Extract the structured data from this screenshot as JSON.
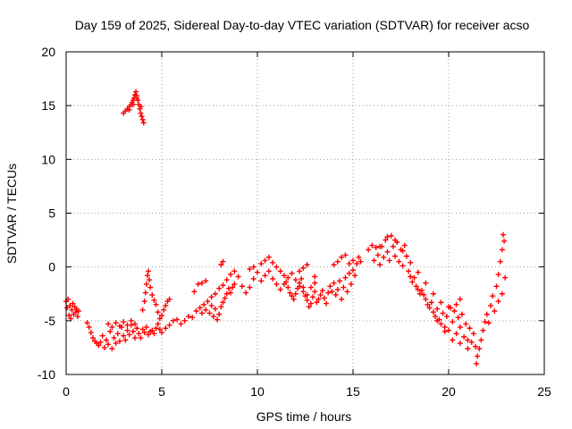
{
  "chart_data": {
    "type": "scatter",
    "title": "Day 159 of 2025, Sidereal Day-to-day VTEC variation (SDTVAR) for receiver acso",
    "xlabel": "GPS time / hours",
    "ylabel": "SDTVAR / TECUs",
    "xlim": [
      0,
      25
    ],
    "ylim": [
      -10,
      20
    ],
    "xticks": [
      0,
      5,
      10,
      15,
      20,
      25
    ],
    "yticks": [
      -10,
      -5,
      0,
      5,
      10,
      15,
      20
    ],
    "xtick_labels": [
      "0",
      "5",
      "10",
      "15",
      "20",
      "25"
    ],
    "ytick_labels": [
      "-10",
      "-5",
      "0",
      "5",
      "10",
      "15",
      "20"
    ],
    "grid": true,
    "marker": "+",
    "color": "#ff0000",
    "series": [
      {
        "name": "SDTVAR",
        "points": [
          [
            0.0,
            -3.2
          ],
          [
            0.05,
            -3.8
          ],
          [
            0.1,
            -3.0
          ],
          [
            0.15,
            -4.5
          ],
          [
            0.2,
            -3.6
          ],
          [
            0.25,
            -4.8
          ],
          [
            0.3,
            -4.0
          ],
          [
            0.35,
            -3.4
          ],
          [
            0.4,
            -4.4
          ],
          [
            0.45,
            -3.7
          ],
          [
            0.5,
            -4.2
          ],
          [
            0.55,
            -3.9
          ],
          [
            0.6,
            -4.6
          ],
          [
            0.65,
            -4.1
          ],
          [
            1.1,
            -5.2
          ],
          [
            1.2,
            -5.6
          ],
          [
            1.3,
            -6.1
          ],
          [
            1.4,
            -6.6
          ],
          [
            1.5,
            -6.9
          ],
          [
            1.6,
            -7.1
          ],
          [
            1.7,
            -7.3
          ],
          [
            1.8,
            -7.0
          ],
          [
            1.9,
            -6.4
          ],
          [
            2.0,
            -7.5
          ],
          [
            2.1,
            -6.8
          ],
          [
            2.2,
            -7.2
          ],
          [
            2.3,
            -6.0
          ],
          [
            2.4,
            -7.6
          ],
          [
            2.5,
            -6.6
          ],
          [
            2.6,
            -7.1
          ],
          [
            2.7,
            -6.2
          ],
          [
            2.8,
            -6.9
          ],
          [
            2.9,
            -5.6
          ],
          [
            3.0,
            -6.4
          ],
          [
            3.1,
            -6.8
          ],
          [
            3.2,
            -5.9
          ],
          [
            3.3,
            -6.3
          ],
          [
            3.4,
            -5.4
          ],
          [
            3.5,
            -6.0
          ],
          [
            3.6,
            -6.6
          ],
          [
            3.7,
            -5.7
          ],
          [
            3.8,
            -6.2
          ],
          [
            3.9,
            -6.6
          ],
          [
            4.0,
            -5.8
          ],
          [
            4.1,
            -6.1
          ],
          [
            4.2,
            -5.6
          ],
          [
            4.3,
            -6.3
          ],
          [
            4.4,
            -6.0
          ],
          [
            4.5,
            -5.9
          ],
          [
            4.6,
            -6.2
          ],
          [
            4.7,
            -5.7
          ],
          [
            4.8,
            -5.3
          ],
          [
            4.9,
            -5.8
          ],
          [
            2.2,
            -5.3
          ],
          [
            2.4,
            -5.6
          ],
          [
            2.6,
            -5.2
          ],
          [
            2.8,
            -5.5
          ],
          [
            3.0,
            -5.1
          ],
          [
            3.2,
            -5.4
          ],
          [
            3.4,
            -5.0
          ],
          [
            3.6,
            -5.3
          ],
          [
            4.0,
            -4.0
          ],
          [
            4.1,
            -3.2
          ],
          [
            4.15,
            -2.4
          ],
          [
            4.2,
            -1.6
          ],
          [
            4.25,
            -0.8
          ],
          [
            4.3,
            -0.4
          ],
          [
            4.35,
            -1.2
          ],
          [
            4.4,
            -1.9
          ],
          [
            4.5,
            -2.6
          ],
          [
            4.6,
            -3.1
          ],
          [
            4.7,
            -3.5
          ],
          [
            4.8,
            -4.2
          ],
          [
            4.9,
            -4.8
          ],
          [
            5.0,
            -4.5
          ],
          [
            5.1,
            -4.0
          ],
          [
            5.2,
            -3.6
          ],
          [
            5.3,
            -3.2
          ],
          [
            5.4,
            -3.0
          ],
          [
            5.0,
            -6.1
          ],
          [
            5.2,
            -5.7
          ],
          [
            5.4,
            -5.4
          ],
          [
            5.6,
            -5.0
          ],
          [
            5.8,
            -4.9
          ],
          [
            6.0,
            -5.3
          ],
          [
            6.2,
            -5.0
          ],
          [
            6.4,
            -4.6
          ],
          [
            6.6,
            -4.7
          ],
          [
            6.8,
            -4.1
          ],
          [
            7.0,
            -3.8
          ],
          [
            7.1,
            -4.3
          ],
          [
            7.2,
            -3.5
          ],
          [
            7.3,
            -4.0
          ],
          [
            7.4,
            -3.2
          ],
          [
            7.5,
            -4.3
          ],
          [
            7.6,
            -3.6
          ],
          [
            7.7,
            -4.6
          ],
          [
            7.8,
            -3.9
          ],
          [
            7.9,
            -4.9
          ],
          [
            8.0,
            -4.4
          ],
          [
            8.1,
            -3.7
          ],
          [
            8.2,
            -3.3
          ],
          [
            8.3,
            -2.9
          ],
          [
            8.4,
            -2.5
          ],
          [
            8.5,
            -2.0
          ],
          [
            8.6,
            -2.4
          ],
          [
            8.7,
            -1.9
          ],
          [
            8.8,
            -1.6
          ],
          [
            6.7,
            -2.3
          ],
          [
            6.9,
            -1.6
          ],
          [
            7.1,
            -1.5
          ],
          [
            7.3,
            -1.3
          ],
          [
            7.6,
            -2.8
          ],
          [
            7.8,
            -2.5
          ],
          [
            8.0,
            -2.0
          ],
          [
            8.2,
            -1.7
          ],
          [
            8.4,
            -1.2
          ],
          [
            8.6,
            -0.7
          ],
          [
            8.8,
            -0.4
          ],
          [
            9.0,
            -0.9
          ],
          [
            9.2,
            -1.8
          ],
          [
            9.4,
            -2.4
          ],
          [
            9.6,
            -1.9
          ],
          [
            9.8,
            -1.1
          ],
          [
            9.6,
            -0.2
          ],
          [
            9.8,
            0.0
          ],
          [
            10.0,
            -0.5
          ],
          [
            10.2,
            0.3
          ],
          [
            10.4,
            0.6
          ],
          [
            10.6,
            0.9
          ],
          [
            10.8,
            0.4
          ],
          [
            11.0,
            0.0
          ],
          [
            11.2,
            -0.4
          ],
          [
            11.4,
            -0.8
          ],
          [
            11.5,
            -1.4
          ],
          [
            11.6,
            -1.9
          ],
          [
            11.7,
            -2.4
          ],
          [
            11.8,
            -2.7
          ],
          [
            11.9,
            -3.0
          ],
          [
            12.0,
            -2.5
          ],
          [
            12.1,
            -2.0
          ],
          [
            12.2,
            -1.5
          ],
          [
            12.3,
            -1.1
          ],
          [
            12.4,
            -1.9
          ],
          [
            12.5,
            -2.7
          ],
          [
            12.6,
            -3.1
          ],
          [
            12.7,
            -3.7
          ],
          [
            12.8,
            -3.4
          ],
          [
            12.9,
            -2.8
          ],
          [
            13.0,
            -2.3
          ],
          [
            13.1,
            -3.3
          ],
          [
            13.2,
            -3.0
          ],
          [
            13.3,
            -2.6
          ],
          [
            13.4,
            -2.2
          ],
          [
            13.5,
            -2.9
          ],
          [
            13.6,
            -3.4
          ],
          [
            13.7,
            -2.4
          ],
          [
            13.8,
            -1.8
          ],
          [
            13.9,
            -2.3
          ],
          [
            14.0,
            -1.5
          ],
          [
            14.1,
            -2.6
          ],
          [
            14.2,
            -2.1
          ],
          [
            14.3,
            -1.3
          ],
          [
            14.4,
            -3.0
          ],
          [
            14.5,
            -1.9
          ],
          [
            14.6,
            -1.0
          ],
          [
            14.7,
            -2.3
          ],
          [
            14.8,
            -0.6
          ],
          [
            14.9,
            -1.6
          ],
          [
            15.0,
            -0.3
          ],
          [
            15.1,
            -0.8
          ],
          [
            15.2,
            0.3
          ],
          [
            15.3,
            0.9
          ],
          [
            15.4,
            0.5
          ],
          [
            10.2,
            -1.3
          ],
          [
            10.4,
            -0.8
          ],
          [
            10.6,
            -0.4
          ],
          [
            10.8,
            -1.1
          ],
          [
            11.0,
            -1.6
          ],
          [
            11.2,
            -2.1
          ],
          [
            11.4,
            -1.6
          ],
          [
            11.6,
            -1.0
          ],
          [
            11.8,
            -0.6
          ],
          [
            12.0,
            -1.2
          ],
          [
            12.2,
            -1.8
          ],
          [
            12.4,
            -2.3
          ],
          [
            12.6,
            -2.6
          ],
          [
            12.8,
            -1.9
          ],
          [
            13.0,
            -1.5
          ],
          [
            12.2,
            -0.4
          ],
          [
            12.4,
            -0.1
          ],
          [
            12.6,
            0.2
          ],
          [
            13.0,
            -0.9
          ],
          [
            14.0,
            0.2
          ],
          [
            14.2,
            0.5
          ],
          [
            14.4,
            0.9
          ],
          [
            14.6,
            1.1
          ],
          [
            14.8,
            0.3
          ],
          [
            15.0,
            0.6
          ],
          [
            8.1,
            0.2
          ],
          [
            8.2,
            0.5
          ],
          [
            15.8,
            1.6
          ],
          [
            16.0,
            2.0
          ],
          [
            16.1,
            0.6
          ],
          [
            16.2,
            1.8
          ],
          [
            16.3,
            1.1
          ],
          [
            16.4,
            0.2
          ],
          [
            16.5,
            1.9
          ],
          [
            16.6,
            0.9
          ],
          [
            16.7,
            2.5
          ],
          [
            16.8,
            1.4
          ],
          [
            16.9,
            0.6
          ],
          [
            17.0,
            2.9
          ],
          [
            17.1,
            1.9
          ],
          [
            17.2,
            1.0
          ],
          [
            17.3,
            2.3
          ],
          [
            17.4,
            0.5
          ],
          [
            17.5,
            1.6
          ],
          [
            17.6,
            0.1
          ],
          [
            17.7,
            2.0
          ],
          [
            17.8,
            1.0
          ],
          [
            17.9,
            -0.4
          ],
          [
            18.0,
            -0.9
          ],
          [
            18.1,
            -1.4
          ],
          [
            18.2,
            -1.0
          ],
          [
            18.3,
            -1.8
          ],
          [
            18.4,
            -2.1
          ],
          [
            18.5,
            -2.5
          ],
          [
            18.6,
            -2.2
          ],
          [
            18.7,
            -2.6
          ],
          [
            18.8,
            -3.0
          ],
          [
            18.9,
            -3.5
          ],
          [
            19.0,
            -3.8
          ],
          [
            19.1,
            -3.3
          ],
          [
            19.2,
            -4.2
          ],
          [
            19.3,
            -4.6
          ],
          [
            19.4,
            -3.9
          ],
          [
            19.5,
            -4.9
          ],
          [
            19.6,
            -5.3
          ],
          [
            19.7,
            -4.3
          ],
          [
            19.8,
            -5.6
          ],
          [
            19.9,
            -4.6
          ],
          [
            20.0,
            -5.9
          ],
          [
            20.1,
            -3.8
          ],
          [
            20.2,
            -5.1
          ],
          [
            20.3,
            -4.1
          ],
          [
            20.4,
            -6.2
          ],
          [
            20.5,
            -4.7
          ],
          [
            20.6,
            -5.6
          ],
          [
            20.7,
            -4.4
          ],
          [
            20.8,
            -6.5
          ],
          [
            20.9,
            -5.3
          ],
          [
            21.0,
            -6.8
          ],
          [
            21.1,
            -5.7
          ],
          [
            21.2,
            -7.0
          ],
          [
            21.3,
            -6.2
          ],
          [
            21.4,
            -7.4
          ],
          [
            21.45,
            -9.0
          ],
          [
            21.5,
            -8.3
          ],
          [
            21.6,
            -7.6
          ],
          [
            21.7,
            -6.8
          ],
          [
            21.8,
            -5.9
          ],
          [
            21.9,
            -5.1
          ],
          [
            22.0,
            -4.4
          ],
          [
            22.1,
            -5.2
          ],
          [
            22.2,
            -3.6
          ],
          [
            22.3,
            -2.7
          ],
          [
            22.4,
            -4.1
          ],
          [
            22.5,
            -1.8
          ],
          [
            22.6,
            -0.7
          ],
          [
            22.7,
            0.5
          ],
          [
            22.8,
            1.6
          ],
          [
            22.85,
            3.0
          ],
          [
            22.9,
            2.4
          ],
          [
            22.95,
            -1.0
          ],
          [
            22.6,
            -3.2
          ],
          [
            22.8,
            -2.5
          ],
          [
            16.4,
            1.9
          ],
          [
            16.8,
            2.8
          ],
          [
            17.2,
            2.5
          ],
          [
            17.6,
            1.5
          ],
          [
            18.0,
            0.4
          ],
          [
            18.4,
            -0.5
          ],
          [
            18.8,
            -1.5
          ],
          [
            19.2,
            -2.5
          ],
          [
            19.6,
            -3.3
          ],
          [
            20.0,
            -3.7
          ],
          [
            20.4,
            -3.5
          ],
          [
            20.6,
            -3.0
          ],
          [
            19.4,
            -5.0
          ],
          [
            19.8,
            -6.0
          ],
          [
            20.2,
            -6.8
          ],
          [
            20.6,
            -7.1
          ],
          [
            21.0,
            -7.6
          ],
          [
            3.0,
            14.3
          ],
          [
            3.1,
            14.5
          ],
          [
            3.2,
            14.7
          ],
          [
            3.3,
            14.9
          ],
          [
            3.4,
            15.1
          ],
          [
            3.45,
            15.3
          ],
          [
            3.5,
            15.5
          ],
          [
            3.55,
            15.7
          ],
          [
            3.6,
            16.0
          ],
          [
            3.65,
            16.3
          ],
          [
            3.7,
            15.9
          ],
          [
            3.75,
            15.5
          ],
          [
            3.8,
            15.1
          ],
          [
            3.85,
            14.7
          ],
          [
            3.9,
            14.3
          ],
          [
            3.95,
            14.0
          ],
          [
            4.0,
            13.7
          ],
          [
            4.05,
            13.4
          ],
          [
            3.3,
            14.6
          ],
          [
            3.5,
            15.1
          ],
          [
            3.7,
            15.7
          ],
          [
            3.9,
            14.9
          ]
        ]
      }
    ]
  }
}
